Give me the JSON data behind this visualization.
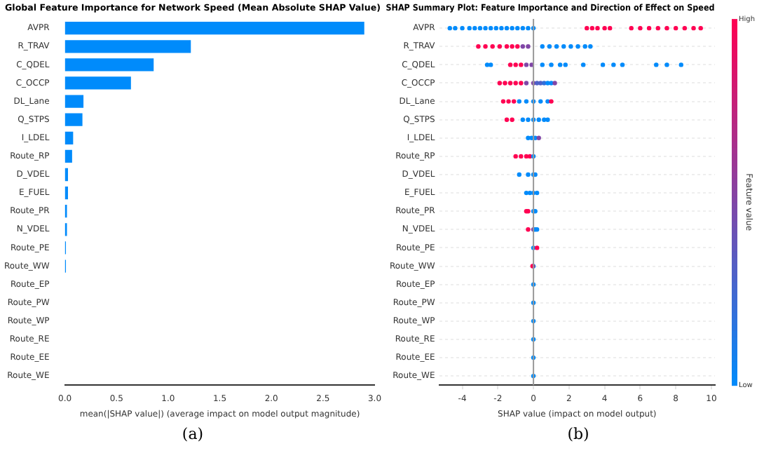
{
  "chart_data": [
    {
      "type": "bar",
      "orientation": "horizontal",
      "title": "Global Feature Importance for Network Speed (Mean Absolute SHAP Value)",
      "xlabel": "mean(|SHAP value|) (average impact on model output magnitude)",
      "categories": [
        "AVPR",
        "R_TRAV",
        "C_QDEL",
        "C_OCCP",
        "DL_Lane",
        "Q_STPS",
        "I_LDEL",
        "Route_RP",
        "D_VDEL",
        "E_FUEL",
        "Route_PR",
        "N_VDEL",
        "Route_PE",
        "Route_WW",
        "Route_EP",
        "Route_PW",
        "Route_WP",
        "Route_RE",
        "Route_EE",
        "Route_WE"
      ],
      "values": [
        2.9,
        1.22,
        0.86,
        0.64,
        0.18,
        0.17,
        0.08,
        0.07,
        0.03,
        0.03,
        0.02,
        0.02,
        0.01,
        0.01,
        0,
        0,
        0,
        0,
        0,
        0
      ],
      "color": "#008bfb",
      "xlim": [
        0,
        3
      ],
      "xticks": [
        {
          "value": 0,
          "label": "0.0"
        },
        0.5,
        {
          "value": 1,
          "label": "1.0"
        },
        1.5,
        {
          "value": 2,
          "label": "2.0"
        },
        2.5,
        {
          "value": 3,
          "label": "3.0"
        }
      ],
      "grid": false,
      "legend": false,
      "annotations": [
        "(a)"
      ]
    },
    {
      "type": "scatter",
      "orientation": "horizontal",
      "title": "SHAP Summary Plot: Feature Importance and Direction of Effect on Speed",
      "xlabel": "SHAP value (impact on model output)",
      "clabel": "Feature value",
      "categories": [
        "AVPR",
        "R_TRAV",
        "C_QDEL",
        "C_OCCP",
        "DL_Lane",
        "Q_STPS",
        "I_LDEL",
        "Route_RP",
        "D_VDEL",
        "E_FUEL",
        "Route_PR",
        "N_VDEL",
        "Route_PE",
        "Route_WW",
        "Route_EP",
        "Route_PW",
        "Route_WP",
        "Route_RE",
        "Route_EE",
        "Route_WE"
      ],
      "series": [
        {
          "values": [
            -4.7,
            -4.4,
            -4.0,
            -3.6,
            -3.3,
            -3.0,
            -2.7,
            -2.4,
            -2.1,
            -1.8,
            -1.5,
            -1.2,
            -0.9,
            -0.6,
            -0.3,
            0,
            3.0,
            3.3,
            3.6,
            4.0,
            4.3,
            5.5,
            6.0,
            6.5,
            7.0,
            7.5,
            8.0,
            8.5,
            9.0,
            9.4,
            -3.1,
            -2.7,
            -2.3,
            -1.9,
            -1.5,
            -1.2,
            -0.9,
            -0.6,
            -0.3,
            0.5,
            0.9,
            1.3,
            1.7,
            2.1,
            2.5,
            2.9,
            3.2,
            -2.6,
            -2.4,
            -1.3,
            -1.0,
            -0.7,
            -0.4,
            -0.1,
            0.5,
            1.0,
            1.5,
            1.8,
            2.8,
            3.9,
            4.5,
            5.0,
            6.9,
            7.5,
            8.3,
            -1.9,
            -1.6,
            -1.3,
            -1.0,
            -0.7,
            -0.4,
            0,
            0.2,
            0.4,
            0.6,
            0.8,
            1.0,
            1.2,
            -1.7,
            -1.4,
            -1.1,
            -0.8,
            -0.4,
            0,
            0.4,
            0.8,
            1.0,
            -1.5,
            -1.2,
            -0.6,
            -0.3,
            0,
            0.3,
            0.6,
            0.8,
            -0.3,
            -0.1,
            0.1,
            0.3,
            -1.0,
            -0.7,
            -0.4,
            -0.2,
            0,
            -0.8,
            -0.3,
            0,
            0.1,
            -0.4,
            -0.2,
            0,
            0.2,
            -0.4,
            -0.3,
            0,
            0.1,
            -0.3,
            0,
            0.1,
            0.2,
            0,
            0.2,
            0,
            -0.05,
            0,
            0,
            0,
            0,
            0,
            0
          ],
          "x": [
            "AVPR",
            "AVPR",
            "AVPR",
            "AVPR",
            "AVPR",
            "AVPR",
            "AVPR",
            "AVPR",
            "AVPR",
            "AVPR",
            "AVPR",
            "AVPR",
            "AVPR",
            "AVPR",
            "AVPR",
            "AVPR",
            "AVPR",
            "AVPR",
            "AVPR",
            "AVPR",
            "AVPR",
            "AVPR",
            "AVPR",
            "AVPR",
            "AVPR",
            "AVPR",
            "AVPR",
            "AVPR",
            "AVPR",
            "AVPR",
            "R_TRAV",
            "R_TRAV",
            "R_TRAV",
            "R_TRAV",
            "R_TRAV",
            "R_TRAV",
            "R_TRAV",
            "R_TRAV",
            "R_TRAV",
            "R_TRAV",
            "R_TRAV",
            "R_TRAV",
            "R_TRAV",
            "R_TRAV",
            "R_TRAV",
            "R_TRAV",
            "R_TRAV",
            "C_QDEL",
            "C_QDEL",
            "C_QDEL",
            "C_QDEL",
            "C_QDEL",
            "C_QDEL",
            "C_QDEL",
            "C_QDEL",
            "C_QDEL",
            "C_QDEL",
            "C_QDEL",
            "C_QDEL",
            "C_QDEL",
            "C_QDEL",
            "C_QDEL",
            "C_QDEL",
            "C_QDEL",
            "C_QDEL",
            "C_OCCP",
            "C_OCCP",
            "C_OCCP",
            "C_OCCP",
            "C_OCCP",
            "C_OCCP",
            "C_OCCP",
            "C_OCCP",
            "C_OCCP",
            "C_OCCP",
            "C_OCCP",
            "C_OCCP",
            "C_OCCP",
            "DL_Lane",
            "DL_Lane",
            "DL_Lane",
            "DL_Lane",
            "DL_Lane",
            "DL_Lane",
            "DL_Lane",
            "DL_Lane",
            "DL_Lane",
            "Q_STPS",
            "Q_STPS",
            "Q_STPS",
            "Q_STPS",
            "Q_STPS",
            "Q_STPS",
            "Q_STPS",
            "Q_STPS",
            "I_LDEL",
            "I_LDEL",
            "I_LDEL",
            "I_LDEL",
            "Route_RP",
            "Route_RP",
            "Route_RP",
            "Route_RP",
            "Route_RP",
            "D_VDEL",
            "D_VDEL",
            "D_VDEL",
            "D_VDEL",
            "E_FUEL",
            "E_FUEL",
            "E_FUEL",
            "E_FUEL",
            "Route_PR",
            "Route_PR",
            "Route_PR",
            "Route_PR",
            "N_VDEL",
            "N_VDEL",
            "N_VDEL",
            "N_VDEL",
            "Route_PE",
            "Route_PE",
            "Route_WW",
            "Route_WW",
            "Route_EP",
            "Route_PW",
            "Route_WP",
            "Route_RE",
            "Route_EE",
            "Route_WE"
          ],
          "cvalues": [
            0,
            0,
            0,
            0,
            0,
            0,
            0,
            0,
            0,
            0,
            0,
            0,
            0,
            0,
            0,
            0,
            1,
            1,
            1,
            1,
            1,
            1,
            1,
            1,
            1,
            1,
            1,
            1,
            1,
            1,
            1,
            1,
            1,
            1,
            1,
            1,
            1,
            0.5,
            0.5,
            0,
            0,
            0,
            0,
            0,
            0,
            0,
            0,
            0,
            0,
            1,
            1,
            1,
            0.5,
            0.5,
            0,
            0,
            0,
            0,
            0,
            0,
            0,
            0,
            0,
            0,
            0,
            1,
            1,
            1,
            1,
            1,
            0.5,
            0.5,
            0.3,
            0.3,
            0.2,
            0,
            0,
            0.5,
            1,
            1,
            1,
            0,
            0,
            0,
            0,
            0,
            1,
            1,
            1,
            0,
            0,
            0,
            0,
            0,
            0,
            0,
            0,
            0,
            0.5,
            1,
            1,
            1,
            1,
            0,
            0,
            0,
            0,
            0,
            0,
            0,
            0,
            0,
            1,
            1,
            0,
            0,
            1,
            0.5,
            0,
            0,
            0,
            1,
            0,
            1,
            0,
            0,
            0,
            0,
            0,
            0
          ]
        }
      ],
      "clim": [
        0,
        1
      ],
      "cticks": [
        {
          "value": 0,
          "label": "Low"
        },
        {
          "value": 1,
          "label": "High"
        }
      ],
      "xlim": [
        -5.3,
        10.2
      ],
      "xticks": [
        -4,
        -2,
        0,
        2,
        4,
        6,
        8,
        10
      ],
      "grid": "y",
      "legend": false,
      "marker": "circle",
      "ref_lines": [
        {
          "axis": "x",
          "value": 0,
          "color": "#999999"
        }
      ],
      "annotations": [
        "(b)"
      ]
    }
  ]
}
